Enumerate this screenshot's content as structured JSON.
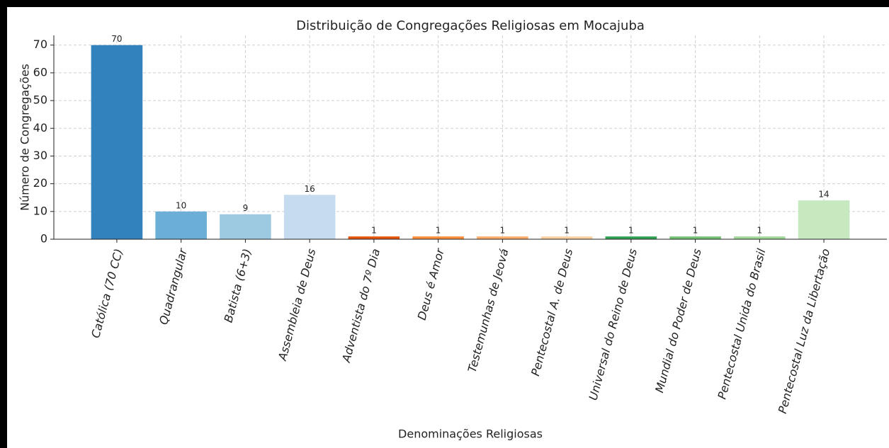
{
  "chart_data": {
    "type": "bar",
    "title": "Distribuição de Congregações Religiosas em Mocajuba",
    "x_label": "Denominações Religiosas",
    "y_label": "Número de Congregações",
    "categories": [
      "Católica (70 CC)",
      "Quadrangular",
      "Batista (6+3)",
      "Assembleia de Deus",
      "Adventista do 7º Dia",
      "Deus é Amor",
      "Testemunhas de Jeová",
      "Pentecostal A. de Deus",
      "Universal do Reino de Deus",
      "Mundial do Poder de Deus",
      "Pentecostal Unida do Brasil",
      "Pentecostal Luz da Libertação"
    ],
    "values": [
      70,
      10,
      9,
      16,
      1,
      1,
      1,
      1,
      1,
      1,
      1,
      14
    ],
    "colors": [
      "#3182bd",
      "#6baed6",
      "#9ecae1",
      "#c6dbef",
      "#e6550d",
      "#fd8d3c",
      "#fdae6b",
      "#fdd0a2",
      "#31a354",
      "#74c476",
      "#a1d99b",
      "#c7e9c0"
    ],
    "ylim": [
      0,
      73.5
    ],
    "yticks": [
      0,
      10,
      20,
      30,
      40,
      50,
      60,
      70
    ],
    "grid": true
  }
}
